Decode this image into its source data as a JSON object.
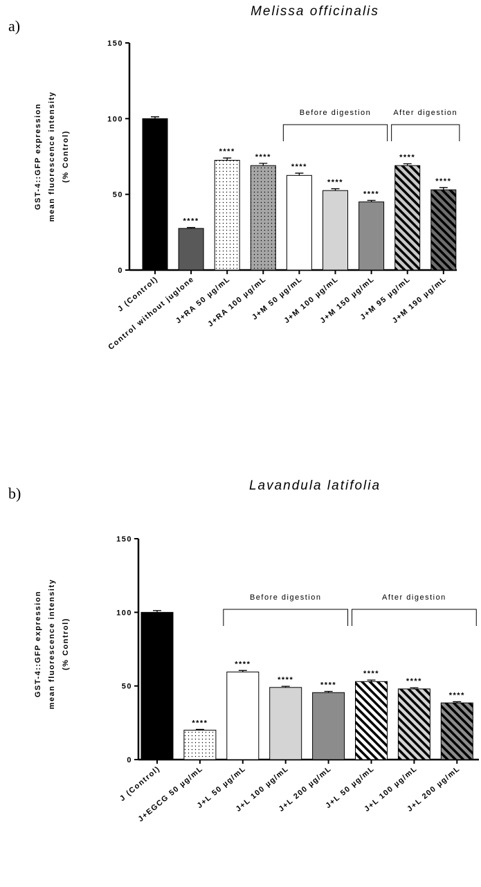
{
  "chart_data": [
    {
      "type": "bar",
      "panel_label": "a)",
      "title": "Melissa officinalis",
      "ylabel": [
        "GST-4::GFP expression",
        "mean fluorescence intensity",
        "(% Control)"
      ],
      "categories": [
        "J (Control)",
        "Control without juglone",
        "J+RA 50 µg/mL",
        "J+RA 100 µg/mL",
        "J+M 50 µg/mL",
        "J+M 100 µg/mL",
        "J+M 150 µg/mL",
        "J+M 95 µg/mL",
        "J+M 190 µg/mL"
      ],
      "values": [
        100,
        27.5,
        72.5,
        69,
        62.5,
        52.5,
        45,
        69,
        53
      ],
      "errors": [
        1.2,
        0.6,
        1.5,
        1.5,
        1.5,
        1.2,
        1,
        1.2,
        1.5
      ],
      "colors": [
        "#000000",
        "#595959",
        "#ffffff",
        "#a6a6a6",
        "#ffffff",
        "#d4d4d4",
        "#8c8c8c",
        "#c8c8c8",
        "#6e6e6e"
      ],
      "patterns": [
        null,
        null,
        "dots",
        "dots",
        null,
        null,
        null,
        "hatch",
        "hatch"
      ],
      "annotations": [
        null,
        "****",
        "****",
        "****",
        "****",
        "****",
        "****",
        "****",
        "****"
      ],
      "brackets": [
        {
          "label": "Before digestion",
          "first": 4,
          "last": 6
        },
        {
          "label": "After digestion",
          "first": 7,
          "last": 8
        }
      ],
      "ylim": [
        0,
        150
      ],
      "yticks": [
        0,
        50,
        100,
        150
      ]
    },
    {
      "type": "bar",
      "panel_label": "b)",
      "title": "Lavandula latifolia",
      "ylabel": [
        "GST-4::GFP expression",
        "mean fluorescence intensity",
        "(% Control)"
      ],
      "categories": [
        "J (Control)",
        "J+EGCG 50 µg/mL",
        "J+L 50 µg/mL",
        "J+L 100 µg/mL",
        "J+L 200 µg/mL",
        "J+L 50 µg/mL",
        "J+L 100 µg/mL",
        "J+L 200 µg/mL"
      ],
      "values": [
        100,
        20,
        59.5,
        49,
        45.5,
        53,
        48,
        38.5
      ],
      "errors": [
        1.2,
        0.5,
        1,
        0.8,
        0.8,
        1,
        0.8,
        0.8
      ],
      "colors": [
        "#000000",
        "#ffffff",
        "#ffffff",
        "#d4d4d4",
        "#8c8c8c",
        "#ffffff",
        "#d4d4d4",
        "#8c8c8c"
      ],
      "patterns": [
        null,
        "dots",
        null,
        null,
        null,
        "hatch",
        "hatch",
        "hatch"
      ],
      "annotations": [
        null,
        "****",
        "****",
        "****",
        "****",
        "****",
        "****",
        "****"
      ],
      "brackets": [
        {
          "label": "Before digestion",
          "first": 2,
          "last": 4
        },
        {
          "label": "After digestion",
          "first": 5,
          "last": 7
        }
      ],
      "ylim": [
        0,
        150
      ],
      "yticks": [
        0,
        50,
        100,
        150
      ]
    }
  ]
}
